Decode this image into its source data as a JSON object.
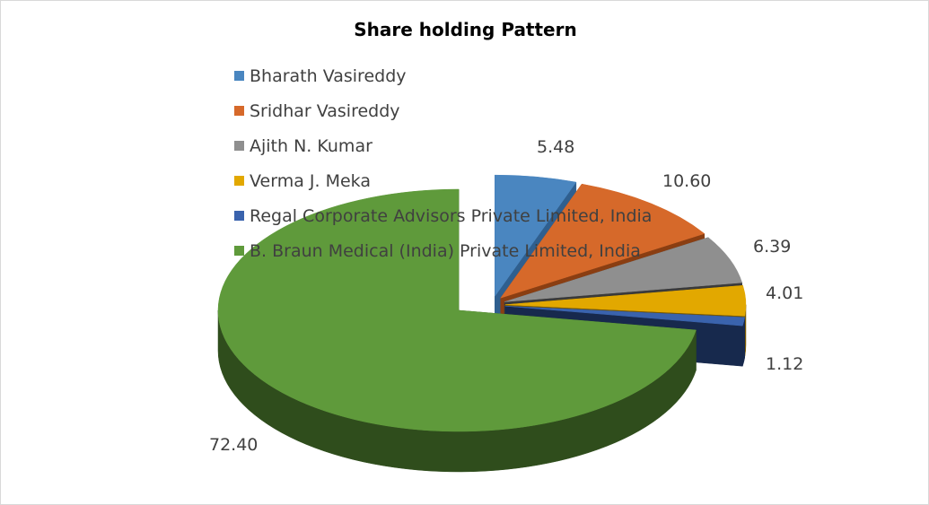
{
  "chart_data": {
    "type": "pie",
    "style": "3d-exploded",
    "title": "Share holding Pattern",
    "legend_position": "top-left",
    "series": [
      {
        "name": "Bharath Vasireddy",
        "value": 5.48,
        "label": "5.48",
        "color": "#4a86c0",
        "side": "#2f5f8f",
        "exploded": true
      },
      {
        "name": "Sridhar Vasireddy",
        "value": 10.6,
        "label": "10.60",
        "color": "#d6692a",
        "side": "#8a3e12",
        "exploded": true
      },
      {
        "name": "Ajith N. Kumar",
        "value": 6.39,
        "label": "6.39",
        "color": "#8f8f8f",
        "side": "#3a3a3a",
        "exploded": true
      },
      {
        "name": "Verma J. Meka",
        "value": 4.01,
        "label": "4.01",
        "color": "#e2a800",
        "side": "#7a5a00",
        "exploded": true
      },
      {
        "name": "Regal Corporate Advisors Private Limited, India",
        "value": 1.12,
        "label": "1.12",
        "color": "#3a63ad",
        "side": "#17294d",
        "exploded": true
      },
      {
        "name": "B. Braun Medical (India) Private Limited, India",
        "value": 72.4,
        "label": "72.40",
        "color": "#5f9a3b",
        "side": "#2f4d1c",
        "exploded": false
      }
    ]
  }
}
